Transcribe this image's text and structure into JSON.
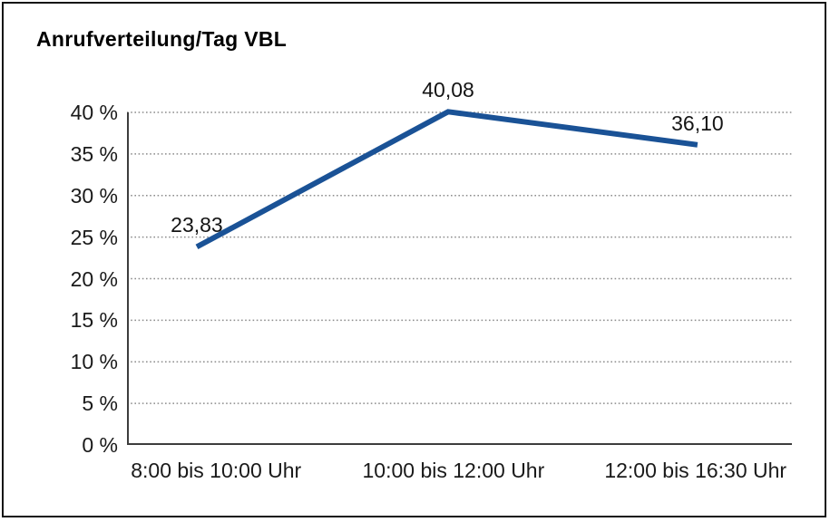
{
  "colors": {
    "line": "#1a5296",
    "axis": "#3d3d3d",
    "grid": "#8c8c8c",
    "text": "#1a1a1a",
    "border": "#141414",
    "background": "#ffffff"
  },
  "chart_data": {
    "type": "line",
    "title": "Anrufverteilung/Tag VBL",
    "categories": [
      "8:00 bis 10:00 Uhr",
      "10:00 bis 12:00 Uhr",
      "12:00 bis 16:30 Uhr"
    ],
    "values": [
      23.83,
      40.08,
      36.1
    ],
    "data_labels": [
      "23,83",
      "40,08",
      "36,10"
    ],
    "series_name": "Anrufverteilung",
    "xlabel": "",
    "ylabel": "",
    "ylim": [
      0,
      40
    ],
    "ytick_step": 5,
    "ytick_labels": [
      "0 %",
      "5 %",
      "10 %",
      "15 %",
      "20 %",
      "25 %",
      "30 %",
      "35 %",
      "40 %"
    ],
    "grid": "horizontal-dotted",
    "legend": "none"
  }
}
